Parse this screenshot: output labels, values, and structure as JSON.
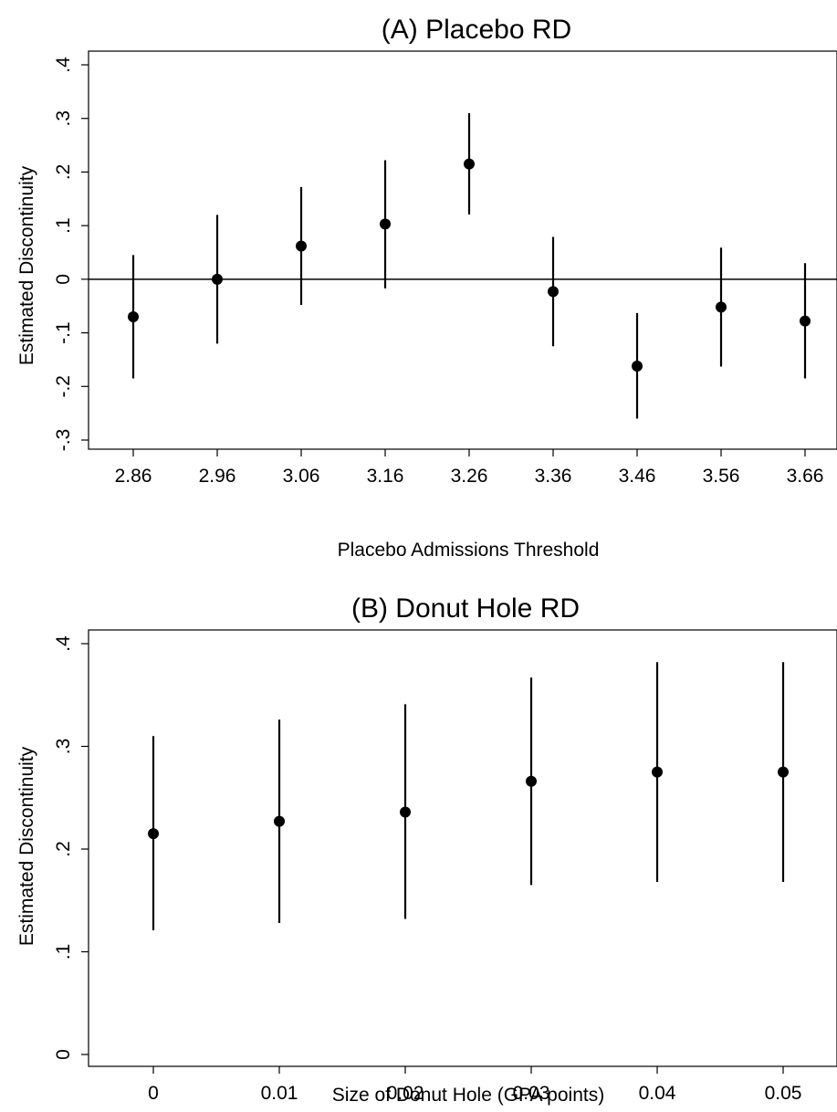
{
  "chart_data": [
    {
      "type": "scatter",
      "subtype": "point-with-confidence-interval",
      "title": "(A) Placebo RD",
      "xlabel": "Placebo Admissions Threshold",
      "ylabel": "Estimated Discontinuity",
      "x_tick_labels": [
        "2.86",
        "2.96",
        "3.06",
        "3.16",
        "3.26",
        "3.36",
        "3.46",
        "3.56",
        "3.66"
      ],
      "y_ticks": [
        -0.3,
        -0.2,
        -0.1,
        0,
        0.1,
        0.2,
        0.3,
        0.4
      ],
      "y_tick_labels": [
        "-.3",
        "-.2",
        "-.1",
        "0",
        ".1",
        ".2",
        ".3",
        ".4"
      ],
      "ylim": [
        -0.3,
        0.4
      ],
      "zero_line": true,
      "grid": false,
      "points": [
        {
          "x": "2.86",
          "y": -0.07,
          "lo": -0.185,
          "hi": 0.045
        },
        {
          "x": "2.96",
          "y": 0.0,
          "lo": -0.12,
          "hi": 0.12
        },
        {
          "x": "3.06",
          "y": 0.062,
          "lo": -0.048,
          "hi": 0.172
        },
        {
          "x": "3.16",
          "y": 0.103,
          "lo": -0.017,
          "hi": 0.222
        },
        {
          "x": "3.26",
          "y": 0.215,
          "lo": 0.121,
          "hi": 0.31
        },
        {
          "x": "3.36",
          "y": -0.023,
          "lo": -0.125,
          "hi": 0.079
        },
        {
          "x": "3.46",
          "y": -0.162,
          "lo": -0.26,
          "hi": -0.063
        },
        {
          "x": "3.56",
          "y": -0.052,
          "lo": -0.163,
          "hi": 0.059
        },
        {
          "x": "3.66",
          "y": -0.078,
          "lo": -0.185,
          "hi": 0.03
        }
      ]
    },
    {
      "type": "scatter",
      "subtype": "point-with-confidence-interval",
      "title": "(B) Donut Hole RD",
      "xlabel": "Size of Donut Hole (GPA points)",
      "ylabel": "Estimated Discontinuity",
      "x_tick_labels": [
        "0",
        "0.01",
        "0.02",
        "0.03",
        "0.04",
        "0.05"
      ],
      "y_ticks": [
        0,
        0.1,
        0.2,
        0.3,
        0.4
      ],
      "y_tick_labels": [
        "0",
        ".1",
        ".2",
        ".3",
        ".4"
      ],
      "ylim": [
        0,
        0.4
      ],
      "zero_line": false,
      "grid": false,
      "points": [
        {
          "x": "0",
          "y": 0.215,
          "lo": 0.121,
          "hi": 0.31
        },
        {
          "x": "0.01",
          "y": 0.227,
          "lo": 0.128,
          "hi": 0.326
        },
        {
          "x": "0.02",
          "y": 0.236,
          "lo": 0.132,
          "hi": 0.341
        },
        {
          "x": "0.03",
          "y": 0.266,
          "lo": 0.165,
          "hi": 0.367
        },
        {
          "x": "0.04",
          "y": 0.275,
          "lo": 0.168,
          "hi": 0.382
        },
        {
          "x": "0.05",
          "y": 0.275,
          "lo": 0.168,
          "hi": 0.382
        }
      ]
    }
  ]
}
